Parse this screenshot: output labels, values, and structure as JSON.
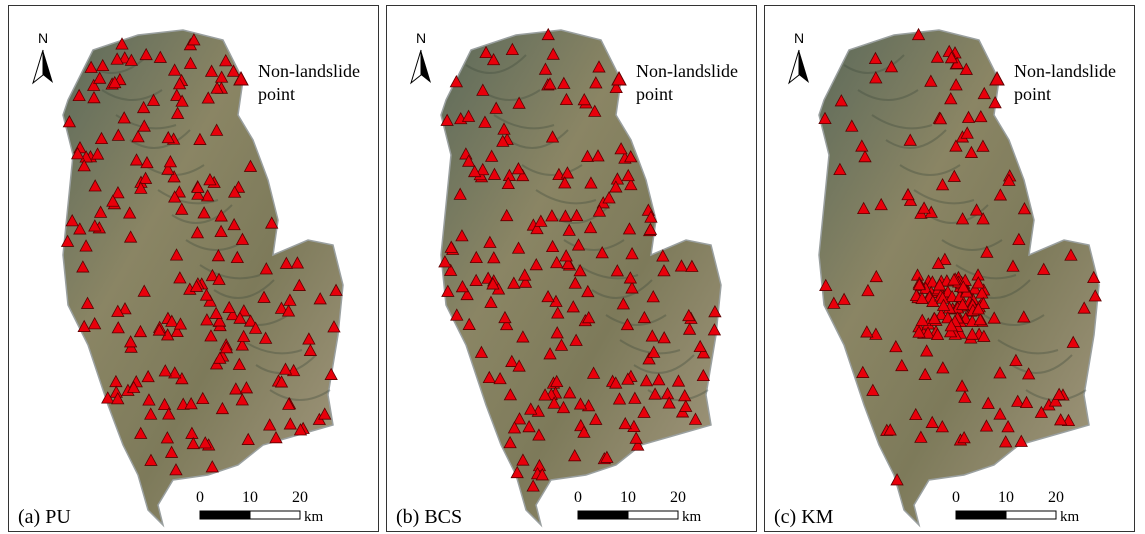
{
  "panels": [
    {
      "label": "(a) PU",
      "north": "N",
      "legend": [
        "Non-landslide",
        "point"
      ],
      "scale": [
        0,
        10,
        20
      ],
      "unit": "km"
    },
    {
      "label": "(b) BCS",
      "north": "N",
      "legend": [
        "Non-landslide",
        "point"
      ],
      "scale": [
        0,
        10,
        20
      ],
      "unit": "km"
    },
    {
      "label": "(c) KM",
      "north": "N",
      "legend": [
        "Non-landslide",
        "point"
      ],
      "scale": [
        0,
        10,
        20
      ],
      "unit": "km"
    }
  ]
}
